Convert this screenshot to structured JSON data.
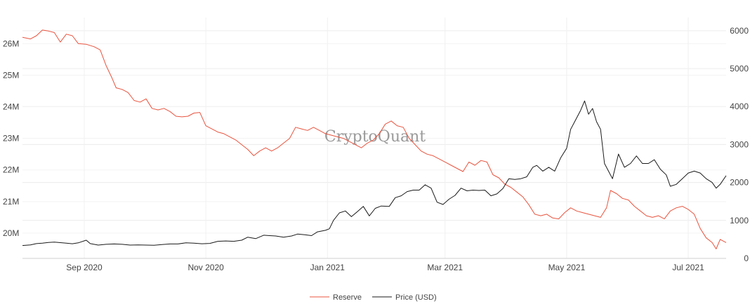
{
  "watermark": "CryptoQuant",
  "chart_data": {
    "type": "line",
    "title": "",
    "xlabel": "",
    "ylabel": "",
    "x_ticks": [
      "Sep 2020",
      "Nov 2020",
      "Jan 2021",
      "Mar 2021",
      "May 2021",
      "Jul 2021"
    ],
    "x_tick_dates": [
      "2020-09-01",
      "2020-11-01",
      "2021-01-01",
      "2021-03-01",
      "2021-05-01",
      "2021-07-01"
    ],
    "x_range": [
      "2020-08-01",
      "2021-07-20"
    ],
    "y_left": {
      "ticks": [
        "20M",
        "21M",
        "22M",
        "23M",
        "24M",
        "25M",
        "26M"
      ],
      "tick_values": [
        20000000,
        21000000,
        22000000,
        23000000,
        24000000,
        25000000,
        26000000
      ],
      "range": [
        19200000,
        26650000
      ]
    },
    "y_right": {
      "ticks": [
        "0",
        "1000",
        "2000",
        "3000",
        "4000",
        "5000",
        "6000"
      ],
      "tick_values": [
        0,
        1000,
        2000,
        3000,
        4000,
        5000,
        6000
      ],
      "range": [
        0,
        6200
      ]
    },
    "grid": true,
    "legend_position": "bottom-center",
    "series": [
      {
        "name": "Reserve",
        "axis": "left",
        "color": "#e8543f",
        "points": [
          [
            "2020-08-01",
            26200000
          ],
          [
            "2020-08-05",
            26150000
          ],
          [
            "2020-08-08",
            26250000
          ],
          [
            "2020-08-11",
            26430000
          ],
          [
            "2020-08-14",
            26400000
          ],
          [
            "2020-08-17",
            26350000
          ],
          [
            "2020-08-20",
            26050000
          ],
          [
            "2020-08-23",
            26300000
          ],
          [
            "2020-08-26",
            26250000
          ],
          [
            "2020-08-29",
            26000000
          ],
          [
            "2020-09-02",
            25980000
          ],
          [
            "2020-09-06",
            25900000
          ],
          [
            "2020-09-09",
            25800000
          ],
          [
            "2020-09-12",
            25300000
          ],
          [
            "2020-09-15",
            24900000
          ],
          [
            "2020-09-17",
            24600000
          ],
          [
            "2020-09-20",
            24550000
          ],
          [
            "2020-09-23",
            24450000
          ],
          [
            "2020-09-26",
            24200000
          ],
          [
            "2020-09-29",
            24150000
          ],
          [
            "2020-10-02",
            24250000
          ],
          [
            "2020-10-05",
            23950000
          ],
          [
            "2020-10-08",
            23900000
          ],
          [
            "2020-10-11",
            23950000
          ],
          [
            "2020-10-14",
            23850000
          ],
          [
            "2020-10-17",
            23700000
          ],
          [
            "2020-10-20",
            23680000
          ],
          [
            "2020-10-23",
            23700000
          ],
          [
            "2020-10-26",
            23800000
          ],
          [
            "2020-10-29",
            23820000
          ],
          [
            "2020-11-01",
            23400000
          ],
          [
            "2020-11-04",
            23300000
          ],
          [
            "2020-11-07",
            23200000
          ],
          [
            "2020-11-10",
            23150000
          ],
          [
            "2020-11-13",
            23050000
          ],
          [
            "2020-11-16",
            22950000
          ],
          [
            "2020-11-19",
            22800000
          ],
          [
            "2020-11-22",
            22650000
          ],
          [
            "2020-11-25",
            22450000
          ],
          [
            "2020-11-28",
            22600000
          ],
          [
            "2020-12-01",
            22700000
          ],
          [
            "2020-12-04",
            22600000
          ],
          [
            "2020-12-07",
            22700000
          ],
          [
            "2020-12-10",
            22850000
          ],
          [
            "2020-12-13",
            23000000
          ],
          [
            "2020-12-16",
            23350000
          ],
          [
            "2020-12-19",
            23300000
          ],
          [
            "2020-12-22",
            23250000
          ],
          [
            "2020-12-25",
            23350000
          ],
          [
            "2020-12-28",
            23250000
          ],
          [
            "2020-12-31",
            23150000
          ],
          [
            "2021-01-03",
            23100000
          ],
          [
            "2021-01-06",
            23050000
          ],
          [
            "2021-01-09",
            23000000
          ],
          [
            "2021-01-12",
            22900000
          ],
          [
            "2021-01-15",
            22800000
          ],
          [
            "2021-01-18",
            22700000
          ],
          [
            "2021-01-21",
            22850000
          ],
          [
            "2021-01-24",
            22950000
          ],
          [
            "2021-01-27",
            23150000
          ],
          [
            "2021-01-30",
            23450000
          ],
          [
            "2021-02-02",
            23550000
          ],
          [
            "2021-02-05",
            23400000
          ],
          [
            "2021-02-08",
            23350000
          ],
          [
            "2021-02-11",
            23000000
          ],
          [
            "2021-02-14",
            22800000
          ],
          [
            "2021-02-17",
            22600000
          ],
          [
            "2021-02-20",
            22500000
          ],
          [
            "2021-02-23",
            22450000
          ],
          [
            "2021-02-26",
            22350000
          ],
          [
            "2021-03-01",
            22250000
          ],
          [
            "2021-03-04",
            22150000
          ],
          [
            "2021-03-07",
            22050000
          ],
          [
            "2021-03-10",
            21950000
          ],
          [
            "2021-03-13",
            22250000
          ],
          [
            "2021-03-16",
            22150000
          ],
          [
            "2021-03-19",
            22300000
          ],
          [
            "2021-03-22",
            22250000
          ],
          [
            "2021-03-25",
            21850000
          ],
          [
            "2021-03-28",
            21750000
          ],
          [
            "2021-03-31",
            21550000
          ],
          [
            "2021-04-03",
            21450000
          ],
          [
            "2021-04-06",
            21300000
          ],
          [
            "2021-04-09",
            21150000
          ],
          [
            "2021-04-12",
            20900000
          ],
          [
            "2021-04-15",
            20600000
          ],
          [
            "2021-04-18",
            20550000
          ],
          [
            "2021-04-21",
            20600000
          ],
          [
            "2021-04-24",
            20480000
          ],
          [
            "2021-04-27",
            20450000
          ],
          [
            "2021-04-30",
            20650000
          ],
          [
            "2021-05-03",
            20800000
          ],
          [
            "2021-05-06",
            20700000
          ],
          [
            "2021-05-09",
            20650000
          ],
          [
            "2021-05-12",
            20600000
          ],
          [
            "2021-05-15",
            20550000
          ],
          [
            "2021-05-18",
            20500000
          ],
          [
            "2021-05-21",
            20800000
          ],
          [
            "2021-05-23",
            21350000
          ],
          [
            "2021-05-26",
            21250000
          ],
          [
            "2021-05-29",
            21100000
          ],
          [
            "2021-06-01",
            21050000
          ],
          [
            "2021-06-04",
            20850000
          ],
          [
            "2021-06-07",
            20700000
          ],
          [
            "2021-06-10",
            20550000
          ],
          [
            "2021-06-13",
            20500000
          ],
          [
            "2021-06-16",
            20550000
          ],
          [
            "2021-06-19",
            20450000
          ],
          [
            "2021-06-22",
            20700000
          ],
          [
            "2021-06-25",
            20800000
          ],
          [
            "2021-06-28",
            20850000
          ],
          [
            "2021-07-01",
            20750000
          ],
          [
            "2021-07-04",
            20600000
          ],
          [
            "2021-07-07",
            20150000
          ],
          [
            "2021-07-10",
            19850000
          ],
          [
            "2021-07-13",
            19700000
          ],
          [
            "2021-07-15",
            19500000
          ],
          [
            "2021-07-17",
            19800000
          ],
          [
            "2021-07-20",
            19700000
          ]
        ]
      },
      {
        "name": "Price (USD)",
        "axis": "right",
        "color": "#1a1a1a",
        "points": [
          [
            "2020-08-01",
            340
          ],
          [
            "2020-08-05",
            355
          ],
          [
            "2020-08-08",
            390
          ],
          [
            "2020-08-11",
            400
          ],
          [
            "2020-08-14",
            420
          ],
          [
            "2020-08-17",
            430
          ],
          [
            "2020-08-20",
            415
          ],
          [
            "2020-08-23",
            400
          ],
          [
            "2020-08-26",
            385
          ],
          [
            "2020-08-29",
            410
          ],
          [
            "2020-09-02",
            480
          ],
          [
            "2020-09-04",
            390
          ],
          [
            "2020-09-08",
            350
          ],
          [
            "2020-09-12",
            370
          ],
          [
            "2020-09-16",
            380
          ],
          [
            "2020-09-20",
            370
          ],
          [
            "2020-09-24",
            350
          ],
          [
            "2020-09-28",
            355
          ],
          [
            "2020-10-02",
            350
          ],
          [
            "2020-10-06",
            345
          ],
          [
            "2020-10-10",
            365
          ],
          [
            "2020-10-14",
            380
          ],
          [
            "2020-10-18",
            380
          ],
          [
            "2020-10-22",
            410
          ],
          [
            "2020-10-26",
            400
          ],
          [
            "2020-10-30",
            385
          ],
          [
            "2020-11-03",
            395
          ],
          [
            "2020-11-07",
            450
          ],
          [
            "2020-11-11",
            460
          ],
          [
            "2020-11-15",
            450
          ],
          [
            "2020-11-19",
            480
          ],
          [
            "2020-11-22",
            560
          ],
          [
            "2020-11-26",
            520
          ],
          [
            "2020-11-30",
            610
          ],
          [
            "2020-12-03",
            600
          ],
          [
            "2020-12-06",
            590
          ],
          [
            "2020-12-10",
            560
          ],
          [
            "2020-12-14",
            590
          ],
          [
            "2020-12-17",
            640
          ],
          [
            "2020-12-21",
            620
          ],
          [
            "2020-12-24",
            600
          ],
          [
            "2020-12-27",
            700
          ],
          [
            "2020-12-31",
            740
          ],
          [
            "2021-01-02",
            780
          ],
          [
            "2021-01-04",
            1000
          ],
          [
            "2021-01-07",
            1200
          ],
          [
            "2021-01-10",
            1250
          ],
          [
            "2021-01-13",
            1100
          ],
          [
            "2021-01-16",
            1230
          ],
          [
            "2021-01-19",
            1370
          ],
          [
            "2021-01-22",
            1120
          ],
          [
            "2021-01-25",
            1320
          ],
          [
            "2021-01-28",
            1380
          ],
          [
            "2021-02-01",
            1370
          ],
          [
            "2021-02-04",
            1600
          ],
          [
            "2021-02-07",
            1650
          ],
          [
            "2021-02-10",
            1760
          ],
          [
            "2021-02-13",
            1800
          ],
          [
            "2021-02-16",
            1800
          ],
          [
            "2021-02-19",
            1940
          ],
          [
            "2021-02-22",
            1850
          ],
          [
            "2021-02-25",
            1480
          ],
          [
            "2021-02-28",
            1420
          ],
          [
            "2021-03-03",
            1560
          ],
          [
            "2021-03-06",
            1660
          ],
          [
            "2021-03-09",
            1850
          ],
          [
            "2021-03-12",
            1780
          ],
          [
            "2021-03-15",
            1800
          ],
          [
            "2021-03-18",
            1790
          ],
          [
            "2021-03-21",
            1800
          ],
          [
            "2021-03-24",
            1650
          ],
          [
            "2021-03-27",
            1700
          ],
          [
            "2021-03-30",
            1840
          ],
          [
            "2021-04-02",
            2100
          ],
          [
            "2021-04-05",
            2080
          ],
          [
            "2021-04-08",
            2100
          ],
          [
            "2021-04-11",
            2150
          ],
          [
            "2021-04-14",
            2400
          ],
          [
            "2021-04-16",
            2450
          ],
          [
            "2021-04-19",
            2300
          ],
          [
            "2021-04-22",
            2400
          ],
          [
            "2021-04-25",
            2300
          ],
          [
            "2021-04-28",
            2650
          ],
          [
            "2021-05-01",
            2900
          ],
          [
            "2021-05-03",
            3400
          ],
          [
            "2021-05-05",
            3600
          ],
          [
            "2021-05-08",
            3900
          ],
          [
            "2021-05-10",
            4150
          ],
          [
            "2021-05-12",
            3800
          ],
          [
            "2021-05-14",
            3950
          ],
          [
            "2021-05-16",
            3600
          ],
          [
            "2021-05-18",
            3400
          ],
          [
            "2021-05-20",
            2500
          ],
          [
            "2021-05-22",
            2300
          ],
          [
            "2021-05-24",
            2100
          ],
          [
            "2021-05-27",
            2750
          ],
          [
            "2021-05-30",
            2400
          ],
          [
            "2021-06-02",
            2500
          ],
          [
            "2021-06-05",
            2700
          ],
          [
            "2021-06-08",
            2500
          ],
          [
            "2021-06-11",
            2500
          ],
          [
            "2021-06-14",
            2600
          ],
          [
            "2021-06-17",
            2350
          ],
          [
            "2021-06-20",
            2200
          ],
          [
            "2021-06-22",
            1900
          ],
          [
            "2021-06-25",
            1950
          ],
          [
            "2021-06-28",
            2100
          ],
          [
            "2021-07-01",
            2250
          ],
          [
            "2021-07-04",
            2300
          ],
          [
            "2021-07-07",
            2250
          ],
          [
            "2021-07-10",
            2100
          ],
          [
            "2021-07-13",
            2000
          ],
          [
            "2021-07-15",
            1850
          ],
          [
            "2021-07-17",
            1950
          ],
          [
            "2021-07-20",
            2180
          ]
        ]
      }
    ]
  }
}
